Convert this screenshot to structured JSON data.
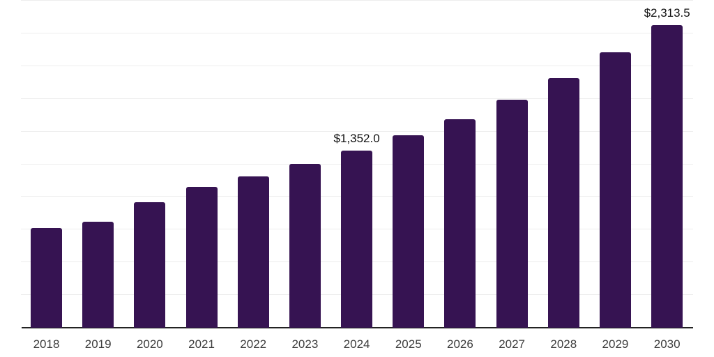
{
  "chart_data": {
    "type": "bar",
    "title": "",
    "xlabel": "",
    "ylabel": "",
    "categories": [
      "2018",
      "2019",
      "2020",
      "2021",
      "2022",
      "2023",
      "2024",
      "2025",
      "2026",
      "2027",
      "2028",
      "2029",
      "2030"
    ],
    "values": [
      762,
      811,
      959,
      1078,
      1157,
      1251,
      1352.0,
      1472,
      1596,
      1742,
      1908,
      2107,
      2313.5
    ],
    "data_labels": {
      "2024": "$1,352.0",
      "2030": "$2,313.5"
    },
    "ylim": [
      0,
      2500
    ],
    "gridline_step": 250,
    "grid": "horizontal",
    "legend": "none",
    "colors": {
      "bar": "#361352",
      "axis_line": "#222222",
      "gridline": "#ededed",
      "tick_label": "#3d3d3d",
      "data_label": "#111111",
      "background": "#ffffff"
    }
  }
}
